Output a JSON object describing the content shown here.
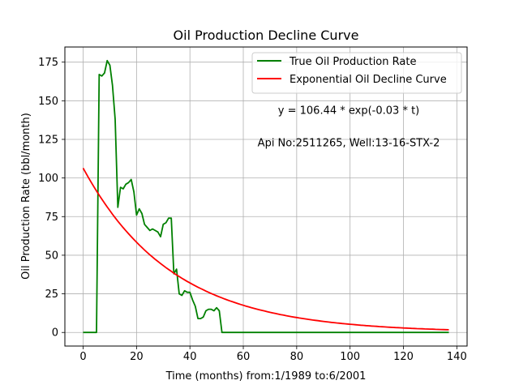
{
  "chart_data": {
    "type": "line",
    "title": "Oil Production Decline Curve",
    "xlabel": "Time (months) from:1/1989 to:6/2001",
    "ylabel": "Oil Production Rate (bbl/month)",
    "xlim": [
      -6.85,
      143.85
    ],
    "ylim": [
      -8.8,
      184.8
    ],
    "xticks": [
      0,
      20,
      40,
      60,
      80,
      100,
      120,
      140
    ],
    "yticks": [
      0,
      25,
      50,
      75,
      100,
      125,
      150,
      175
    ],
    "grid": true,
    "legend_position": "upper-right",
    "annotations": [
      {
        "text": "y = 106.44 * exp(-0.03 * t)",
        "x": 99.5,
        "y": 141.4
      },
      {
        "text": "Api No:2511265, Well:13-16-STX-2",
        "x": 99.5,
        "y": 120.6
      }
    ],
    "series": [
      {
        "name": "True Oil Production Rate",
        "color": "#008000",
        "x": [
          0,
          5,
          6,
          7,
          8,
          9,
          10,
          11,
          12,
          13,
          14,
          15,
          16,
          17,
          18,
          19,
          20,
          21,
          22,
          23,
          24,
          25,
          26,
          27,
          28,
          29,
          30,
          31,
          32,
          33,
          34,
          35,
          36,
          37,
          38,
          39,
          40,
          41,
          42,
          43,
          44,
          45,
          46,
          47,
          48,
          49,
          50,
          51,
          52,
          53,
          60,
          80,
          100,
          120,
          137
        ],
        "y": [
          0,
          0,
          167,
          166,
          168,
          176,
          173,
          160,
          138,
          81,
          94,
          93,
          96,
          97,
          99,
          91,
          76,
          80,
          77,
          70,
          68,
          66,
          67,
          66,
          65,
          62,
          70,
          71,
          74,
          74,
          38,
          41,
          25,
          24,
          27,
          26,
          26,
          21,
          17,
          9,
          9,
          10,
          14,
          15,
          15,
          14,
          16,
          14,
          0,
          0,
          0,
          0,
          0,
          0,
          0
        ]
      },
      {
        "name": "Exponential Oil Decline Curve",
        "color": "#ff0000",
        "equation": {
          "a": 106.44,
          "b": 0.03
        },
        "x_range": [
          0,
          137
        ]
      }
    ]
  }
}
